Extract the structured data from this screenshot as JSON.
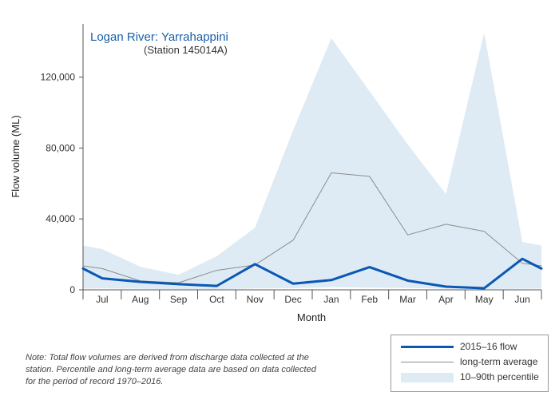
{
  "chart_data": {
    "type": "line",
    "title": "Logan River: Yarrahappini",
    "subtitle": "(Station 145014A)",
    "xlabel": "Month",
    "ylabel": "Flow volume (ML)",
    "categories": [
      "Jul",
      "Aug",
      "Sep",
      "Oct",
      "Nov",
      "Dec",
      "Jan",
      "Feb",
      "Mar",
      "Apr",
      "May",
      "Jun"
    ],
    "ylim": [
      0,
      150000
    ],
    "yticks": [
      0,
      40000,
      80000,
      120000
    ],
    "ytick_labels": [
      "0",
      "40,000",
      "80,000",
      "120,000"
    ],
    "grid": false,
    "legend_position": "bottom-right",
    "series": [
      {
        "name": "2015–16 flow",
        "kind": "line",
        "color": "#0a58b4",
        "values": [
          6500,
          4500,
          3200,
          2200,
          14500,
          3500,
          5500,
          12800,
          5200,
          1800,
          900,
          17500
        ]
      },
      {
        "name": "long-term average",
        "kind": "line",
        "color": "#8c8c8c",
        "values": [
          12000,
          5000,
          4000,
          11000,
          14000,
          28000,
          66000,
          64000,
          31000,
          37000,
          33000,
          15000
        ]
      },
      {
        "name": "10–90th percentile",
        "kind": "band",
        "color": "#deebf4",
        "upper": [
          23000,
          13000,
          8500,
          19000,
          35000,
          90000,
          142000,
          112000,
          82000,
          54000,
          145000,
          27000
        ],
        "lower": [
          800,
          600,
          400,
          300,
          800,
          900,
          1500,
          1200,
          1000,
          700,
          500,
          600
        ]
      }
    ]
  },
  "note": "Note: Total flow volumes are derived from discharge data collected at the station. Percentile and long-term average data are based on data collected for the period of record 1970–2016.",
  "legend": {
    "flow_label": "2015–16 flow",
    "average_label": "long-term average",
    "percentile_label": "10–90th percentile"
  }
}
